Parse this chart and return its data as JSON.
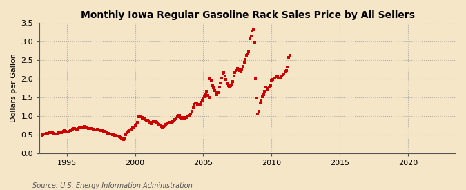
{
  "title": "Monthly Iowa Regular Gasoline Rack Sales Price by All Sellers",
  "ylabel": "Dollars per Gallon",
  "source": "Source: U.S. Energy Information Administration",
  "xlim": [
    1993.0,
    2023.5
  ],
  "ylim": [
    0.0,
    3.5
  ],
  "yticks": [
    0.0,
    0.5,
    1.0,
    1.5,
    2.0,
    2.5,
    3.0,
    3.5
  ],
  "xticks": [
    1995,
    2000,
    2005,
    2010,
    2015,
    2020
  ],
  "dot_color": "#cc0000",
  "background_color": "#f5e6c8",
  "grid_color": "#aaaaaa",
  "data": [
    [
      1993.17,
      0.47
    ],
    [
      1993.25,
      0.5
    ],
    [
      1993.33,
      0.52
    ],
    [
      1993.42,
      0.51
    ],
    [
      1993.5,
      0.53
    ],
    [
      1993.58,
      0.53
    ],
    [
      1993.67,
      0.55
    ],
    [
      1993.75,
      0.57
    ],
    [
      1993.83,
      0.56
    ],
    [
      1993.92,
      0.55
    ],
    [
      1994.0,
      0.53
    ],
    [
      1994.08,
      0.52
    ],
    [
      1994.17,
      0.51
    ],
    [
      1994.25,
      0.52
    ],
    [
      1994.33,
      0.53
    ],
    [
      1994.42,
      0.55
    ],
    [
      1994.5,
      0.57
    ],
    [
      1994.58,
      0.56
    ],
    [
      1994.67,
      0.57
    ],
    [
      1994.75,
      0.58
    ],
    [
      1994.83,
      0.6
    ],
    [
      1994.92,
      0.59
    ],
    [
      1995.0,
      0.57
    ],
    [
      1995.08,
      0.57
    ],
    [
      1995.17,
      0.58
    ],
    [
      1995.25,
      0.61
    ],
    [
      1995.33,
      0.63
    ],
    [
      1995.42,
      0.65
    ],
    [
      1995.5,
      0.67
    ],
    [
      1995.58,
      0.66
    ],
    [
      1995.67,
      0.64
    ],
    [
      1995.75,
      0.65
    ],
    [
      1995.83,
      0.67
    ],
    [
      1995.92,
      0.68
    ],
    [
      1996.0,
      0.68
    ],
    [
      1996.08,
      0.7
    ],
    [
      1996.17,
      0.69
    ],
    [
      1996.25,
      0.71
    ],
    [
      1996.33,
      0.7
    ],
    [
      1996.42,
      0.69
    ],
    [
      1996.5,
      0.68
    ],
    [
      1996.58,
      0.67
    ],
    [
      1996.67,
      0.66
    ],
    [
      1996.75,
      0.67
    ],
    [
      1996.83,
      0.66
    ],
    [
      1996.92,
      0.65
    ],
    [
      1997.0,
      0.64
    ],
    [
      1997.08,
      0.63
    ],
    [
      1997.17,
      0.62
    ],
    [
      1997.25,
      0.64
    ],
    [
      1997.33,
      0.63
    ],
    [
      1997.42,
      0.62
    ],
    [
      1997.5,
      0.61
    ],
    [
      1997.58,
      0.6
    ],
    [
      1997.67,
      0.59
    ],
    [
      1997.75,
      0.58
    ],
    [
      1997.83,
      0.57
    ],
    [
      1997.92,
      0.56
    ],
    [
      1998.0,
      0.54
    ],
    [
      1998.08,
      0.53
    ],
    [
      1998.17,
      0.52
    ],
    [
      1998.25,
      0.51
    ],
    [
      1998.33,
      0.5
    ],
    [
      1998.42,
      0.49
    ],
    [
      1998.5,
      0.48
    ],
    [
      1998.58,
      0.47
    ],
    [
      1998.67,
      0.46
    ],
    [
      1998.75,
      0.45
    ],
    [
      1998.83,
      0.44
    ],
    [
      1998.92,
      0.42
    ],
    [
      1999.0,
      0.4
    ],
    [
      1999.08,
      0.38
    ],
    [
      1999.17,
      0.37
    ],
    [
      1999.25,
      0.41
    ],
    [
      1999.33,
      0.49
    ],
    [
      1999.42,
      0.55
    ],
    [
      1999.5,
      0.58
    ],
    [
      1999.58,
      0.6
    ],
    [
      1999.67,
      0.62
    ],
    [
      1999.75,
      0.65
    ],
    [
      1999.83,
      0.68
    ],
    [
      1999.92,
      0.7
    ],
    [
      2000.0,
      0.73
    ],
    [
      2000.08,
      0.78
    ],
    [
      2000.17,
      0.83
    ],
    [
      2000.25,
      0.97
    ],
    [
      2000.33,
      1.0
    ],
    [
      2000.42,
      0.97
    ],
    [
      2000.5,
      0.93
    ],
    [
      2000.58,
      0.95
    ],
    [
      2000.67,
      0.93
    ],
    [
      2000.75,
      0.91
    ],
    [
      2000.83,
      0.89
    ],
    [
      2000.92,
      0.88
    ],
    [
      2001.0,
      0.86
    ],
    [
      2001.08,
      0.83
    ],
    [
      2001.17,
      0.8
    ],
    [
      2001.25,
      0.83
    ],
    [
      2001.33,
      0.85
    ],
    [
      2001.42,
      0.87
    ],
    [
      2001.5,
      0.86
    ],
    [
      2001.58,
      0.83
    ],
    [
      2001.67,
      0.8
    ],
    [
      2001.75,
      0.77
    ],
    [
      2001.83,
      0.75
    ],
    [
      2001.92,
      0.71
    ],
    [
      2002.0,
      0.69
    ],
    [
      2002.08,
      0.72
    ],
    [
      2002.17,
      0.74
    ],
    [
      2002.25,
      0.77
    ],
    [
      2002.33,
      0.79
    ],
    [
      2002.42,
      0.81
    ],
    [
      2002.5,
      0.83
    ],
    [
      2002.58,
      0.82
    ],
    [
      2002.67,
      0.83
    ],
    [
      2002.75,
      0.85
    ],
    [
      2002.83,
      0.87
    ],
    [
      2002.92,
      0.9
    ],
    [
      2003.0,
      0.94
    ],
    [
      2003.08,
      0.97
    ],
    [
      2003.17,
      1.02
    ],
    [
      2003.25,
      1.02
    ],
    [
      2003.33,
      0.95
    ],
    [
      2003.42,
      0.92
    ],
    [
      2003.5,
      0.93
    ],
    [
      2003.58,
      0.95
    ],
    [
      2003.67,
      0.93
    ],
    [
      2003.75,
      0.96
    ],
    [
      2003.83,
      0.98
    ],
    [
      2003.92,
      0.99
    ],
    [
      2004.0,
      1.01
    ],
    [
      2004.08,
      1.06
    ],
    [
      2004.17,
      1.12
    ],
    [
      2004.25,
      1.22
    ],
    [
      2004.33,
      1.32
    ],
    [
      2004.42,
      1.34
    ],
    [
      2004.5,
      1.35
    ],
    [
      2004.58,
      1.32
    ],
    [
      2004.67,
      1.29
    ],
    [
      2004.75,
      1.31
    ],
    [
      2004.83,
      1.37
    ],
    [
      2004.92,
      1.42
    ],
    [
      2005.0,
      1.47
    ],
    [
      2005.08,
      1.52
    ],
    [
      2005.17,
      1.57
    ],
    [
      2005.25,
      1.67
    ],
    [
      2005.33,
      1.55
    ],
    [
      2005.42,
      1.5
    ],
    [
      2005.5,
      2.0
    ],
    [
      2005.58,
      1.95
    ],
    [
      2005.67,
      1.82
    ],
    [
      2005.75,
      1.75
    ],
    [
      2005.83,
      1.68
    ],
    [
      2005.92,
      1.62
    ],
    [
      2006.0,
      1.57
    ],
    [
      2006.08,
      1.62
    ],
    [
      2006.17,
      1.77
    ],
    [
      2006.25,
      1.88
    ],
    [
      2006.33,
      2.02
    ],
    [
      2006.42,
      2.12
    ],
    [
      2006.5,
      2.17
    ],
    [
      2006.58,
      2.07
    ],
    [
      2006.67,
      1.97
    ],
    [
      2006.75,
      1.87
    ],
    [
      2006.83,
      1.82
    ],
    [
      2006.92,
      1.77
    ],
    [
      2007.0,
      1.82
    ],
    [
      2007.08,
      1.84
    ],
    [
      2007.17,
      1.92
    ],
    [
      2007.25,
      2.07
    ],
    [
      2007.33,
      2.17
    ],
    [
      2007.42,
      2.22
    ],
    [
      2007.5,
      2.27
    ],
    [
      2007.58,
      2.24
    ],
    [
      2007.67,
      2.22
    ],
    [
      2007.75,
      2.2
    ],
    [
      2007.83,
      2.23
    ],
    [
      2007.92,
      2.33
    ],
    [
      2008.0,
      2.43
    ],
    [
      2008.08,
      2.52
    ],
    [
      2008.17,
      2.62
    ],
    [
      2008.25,
      2.67
    ],
    [
      2008.33,
      2.73
    ],
    [
      2008.42,
      3.07
    ],
    [
      2008.5,
      3.15
    ],
    [
      2008.58,
      3.27
    ],
    [
      2008.67,
      3.32
    ],
    [
      2008.75,
      2.97
    ],
    [
      2008.83,
      2.0
    ],
    [
      2008.92,
      1.47
    ],
    [
      2009.0,
      1.05
    ],
    [
      2009.08,
      1.12
    ],
    [
      2009.17,
      1.35
    ],
    [
      2009.25,
      1.42
    ],
    [
      2009.33,
      1.52
    ],
    [
      2009.42,
      1.57
    ],
    [
      2009.5,
      1.67
    ],
    [
      2009.58,
      1.77
    ],
    [
      2009.67,
      1.74
    ],
    [
      2009.75,
      1.72
    ],
    [
      2009.83,
      1.77
    ],
    [
      2009.92,
      1.82
    ],
    [
      2010.0,
      1.95
    ],
    [
      2010.08,
      1.98
    ],
    [
      2010.17,
      2.02
    ],
    [
      2010.25,
      2.02
    ],
    [
      2010.33,
      2.07
    ],
    [
      2010.42,
      2.05
    ],
    [
      2010.5,
      2.02
    ],
    [
      2010.58,
      2.02
    ],
    [
      2010.67,
      2.02
    ],
    [
      2010.75,
      2.07
    ],
    [
      2010.83,
      2.1
    ],
    [
      2010.92,
      2.12
    ],
    [
      2011.0,
      2.18
    ],
    [
      2011.08,
      2.22
    ],
    [
      2011.17,
      2.32
    ],
    [
      2011.25,
      2.57
    ],
    [
      2011.33,
      2.62
    ]
  ]
}
